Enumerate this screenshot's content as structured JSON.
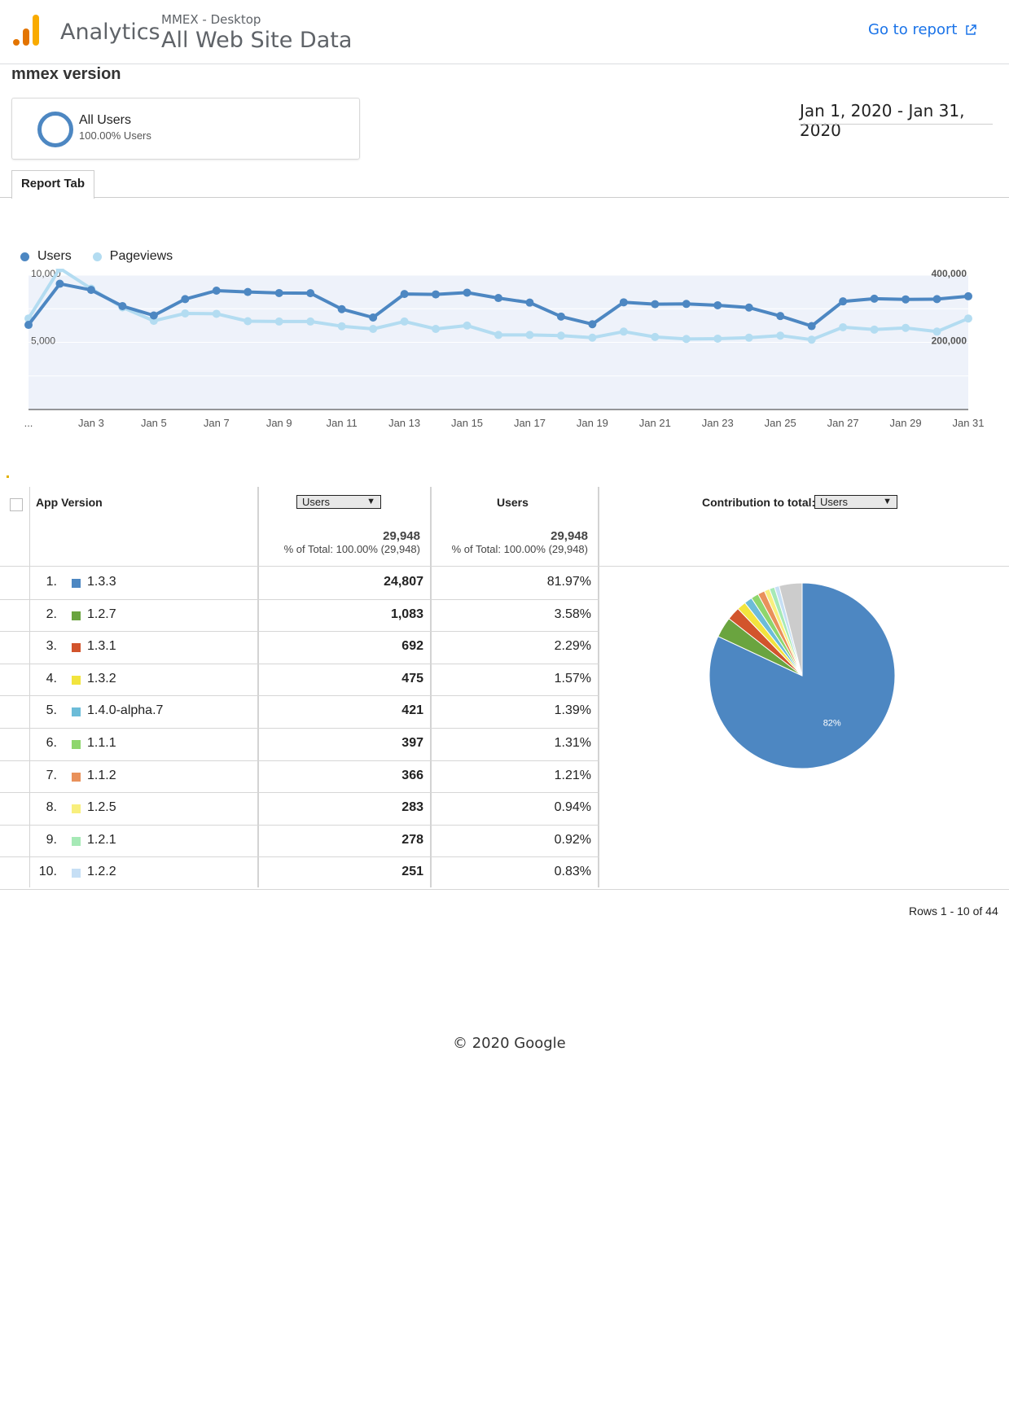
{
  "header": {
    "product": "Analytics",
    "property": "MMEX - Desktop",
    "view": "All Web Site Data",
    "go_to_report": "Go to report"
  },
  "report": {
    "title": "mmex version",
    "segment": {
      "name": "All Users",
      "sub": "100.00% Users"
    },
    "date_range": "Jan 1, 2020 - Jan 31, 2020",
    "tab": "Report Tab"
  },
  "legend": {
    "users": "Users",
    "pageviews": "Pageviews"
  },
  "colors": {
    "users": "#4d87c2",
    "pageviews": "#b3dcf1",
    "area": "#eef2fa",
    "link": "#1a73e8"
  },
  "chart_data": [
    {
      "type": "line",
      "x_tick_labels": [
        "...",
        "Jan 3",
        "Jan 5",
        "Jan 7",
        "Jan 9",
        "Jan 11",
        "Jan 13",
        "Jan 15",
        "Jan 17",
        "Jan 19",
        "Jan 21",
        "Jan 23",
        "Jan 25",
        "Jan 27",
        "Jan 29",
        "Jan 31"
      ],
      "y_left_ticks": [
        "10,000",
        "5,000"
      ],
      "y_right_ticks": [
        "400,000",
        "200,000"
      ],
      "ylim_left": [
        0,
        10000
      ],
      "ylim_right": [
        0,
        400000
      ],
      "series": [
        {
          "name": "Users",
          "axis": "left",
          "values": [
            6300,
            9360,
            8900,
            7700,
            7000,
            8220,
            8850,
            8750,
            8670,
            8660,
            7470,
            6850,
            8600,
            8570,
            8700,
            8300,
            7960,
            6920,
            6350,
            7980,
            7840,
            7860,
            7760,
            7590,
            6960,
            6210,
            8050,
            8250,
            8200,
            8220,
            8430
          ]
        },
        {
          "name": "Pageviews",
          "axis": "right",
          "values": [
            271000,
            420000,
            360000,
            304000,
            264000,
            286000,
            285000,
            263000,
            262000,
            262000,
            248000,
            240000,
            262000,
            240000,
            250000,
            222000,
            222000,
            220000,
            214000,
            232000,
            216000,
            210000,
            211000,
            214000,
            220000,
            208000,
            245000,
            238000,
            243000,
            232000,
            271000
          ]
        }
      ]
    },
    {
      "type": "pie",
      "categories": [
        "1.3.3",
        "1.2.7",
        "1.3.1",
        "1.3.2",
        "1.4.0-alpha.7",
        "1.1.1",
        "1.1.2",
        "1.2.5",
        "1.2.1",
        "1.2.2",
        "Other"
      ],
      "values": [
        81.97,
        3.58,
        2.29,
        1.57,
        1.39,
        1.31,
        1.21,
        0.94,
        0.92,
        0.83,
        3.99
      ],
      "colors": [
        "#4d87c2",
        "#6aa43f",
        "#d2542c",
        "#f2e43d",
        "#6cbcd8",
        "#8ed66d",
        "#e9915b",
        "#f8ef7d",
        "#a6e9b6",
        "#c6dff5",
        "#cccccc"
      ],
      "slice_label": "82%"
    }
  ],
  "table": {
    "col_dimension": "App Version",
    "col_metric_select": "Users",
    "col_metric": "Users",
    "col_contribution": "Contribution to total:",
    "contribution_select": "Users",
    "totals": {
      "metric_total": "29,948",
      "metric_sub": "% of Total: 100.00% (29,948)",
      "users_total": "29,948",
      "users_sub": "% of Total: 100.00% (29,948)"
    },
    "rows": [
      {
        "num": "1.",
        "version": "1.3.3",
        "value": "24,807",
        "pct": "81.97%",
        "color": "#4d87c2"
      },
      {
        "num": "2.",
        "version": "1.2.7",
        "value": "1,083",
        "pct": "3.58%",
        "color": "#6aa43f"
      },
      {
        "num": "3.",
        "version": "1.3.1",
        "value": "692",
        "pct": "2.29%",
        "color": "#d2542c"
      },
      {
        "num": "4.",
        "version": "1.3.2",
        "value": "475",
        "pct": "1.57%",
        "color": "#f2e43d"
      },
      {
        "num": "5.",
        "version": "1.4.0-alpha.7",
        "value": "421",
        "pct": "1.39%",
        "color": "#6cbcd8"
      },
      {
        "num": "6.",
        "version": "1.1.1",
        "value": "397",
        "pct": "1.31%",
        "color": "#8ed66d"
      },
      {
        "num": "7.",
        "version": "1.1.2",
        "value": "366",
        "pct": "1.21%",
        "color": "#e9915b"
      },
      {
        "num": "8.",
        "version": "1.2.5",
        "value": "283",
        "pct": "0.94%",
        "color": "#f8ef7d"
      },
      {
        "num": "9.",
        "version": "1.2.1",
        "value": "278",
        "pct": "0.92%",
        "color": "#a6e9b6"
      },
      {
        "num": "10.",
        "version": "1.2.2",
        "value": "251",
        "pct": "0.83%",
        "color": "#c6dff5"
      }
    ],
    "rows_info": "Rows 1 - 10 of 44"
  },
  "footer": "© 2020 Google"
}
